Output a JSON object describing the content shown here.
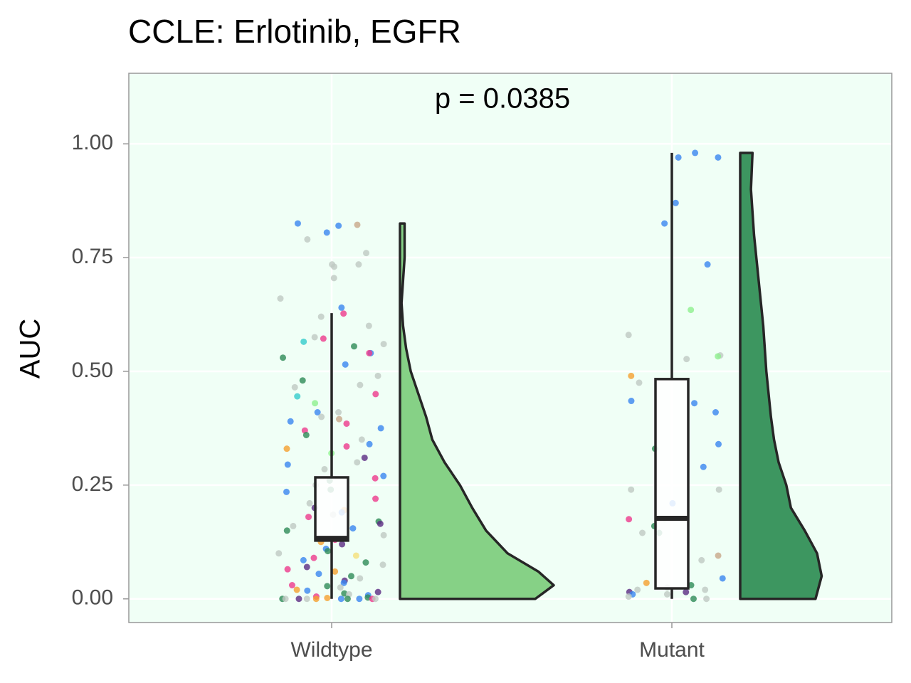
{
  "chart_data": {
    "type": "raincloud",
    "title": "CCLE: Erlotinib, EGFR",
    "y_label": "AUC",
    "annotation": "p = 0.0385",
    "ylim": [
      -0.052,
      1.155
    ],
    "yticks": [
      {
        "value": 0,
        "label": "0.00"
      },
      {
        "value": 0.25,
        "label": "0.25"
      },
      {
        "value": 0.5,
        "label": "0.50"
      },
      {
        "value": 0.75,
        "label": "0.75"
      },
      {
        "value": 1,
        "label": "1.00"
      }
    ],
    "grid": true,
    "panel_color": "#f0fff6",
    "groups": [
      {
        "name": "Wildtype",
        "fill": "#86d186",
        "box": {
          "whisker_low": 0,
          "q1": 0.128,
          "median": 0.133,
          "q3": 0.267,
          "whisker_high": 0.628
        },
        "density": {
          "y": [
            0,
            0.03,
            0.06,
            0.1,
            0.15,
            0.2,
            0.25,
            0.3,
            0.35,
            0.4,
            0.45,
            0.5,
            0.55,
            0.6,
            0.65,
            0.7,
            0.75,
            0.8,
            0.825
          ],
          "width": [
            0.88,
            1.0,
            0.9,
            0.7,
            0.56,
            0.47,
            0.39,
            0.29,
            0.21,
            0.17,
            0.12,
            0.07,
            0.04,
            0.02,
            0.01,
            0.02,
            0.03,
            0.03,
            0.03
          ]
        },
        "points": {
          "values": [
            0.825,
            0.822,
            0.82,
            0.805,
            0.79,
            0.76,
            0.735,
            0.735,
            0.73,
            0.705,
            0.66,
            0.64,
            0.627,
            0.62,
            0.6,
            0.575,
            0.572,
            0.565,
            0.56,
            0.555,
            0.54,
            0.54,
            0.53,
            0.515,
            0.49,
            0.48,
            0.47,
            0.465,
            0.45,
            0.445,
            0.43,
            0.41,
            0.41,
            0.4,
            0.395,
            0.39,
            0.385,
            0.375,
            0.37,
            0.36,
            0.35,
            0.34,
            0.335,
            0.33,
            0.32,
            0.31,
            0.3,
            0.295,
            0.285,
            0.27,
            0.265,
            0.26,
            0.25,
            0.24,
            0.235,
            0.22,
            0.21,
            0.2,
            0.195,
            0.19,
            0.185,
            0.18,
            0.17,
            0.165,
            0.16,
            0.155,
            0.15,
            0.14,
            0.13,
            0.125,
            0.12,
            0.11,
            0.105,
            0.1,
            0.095,
            0.09,
            0.085,
            0.08,
            0.075,
            0.07,
            0.065,
            0.06,
            0.055,
            0.05,
            0.045,
            0.04,
            0.035,
            0.03,
            0.028,
            0.025,
            0.02,
            0.018,
            0.015,
            0.012,
            0.01,
            0.008,
            0.005,
            0.003,
            0.002,
            0,
            0,
            0,
            0,
            0,
            0,
            0,
            0,
            0,
            0
          ],
          "colors": [
            "#3a86f0",
            "#c8a88a",
            "#3a86f0",
            "#3a86f0",
            "#bfc9c3",
            "#bfc9c3",
            "#bfc9c3",
            "#bfc9c3",
            "#bfc9c3",
            "#bfc9c3",
            "#bfc9c3",
            "#3a86f0",
            "#ee3a8c",
            "#bfc9c3",
            "#bfc9c3",
            "#bfc9c3",
            "#ee3a8c",
            "#33cccc",
            "#bfc9c3",
            "#2e8b57",
            "#3a86f0",
            "#ee3a8c",
            "#2e8b57",
            "#3a86f0",
            "#bfc9c3",
            "#2e8b57",
            "#bfc9c3",
            "#bfc9c3",
            "#ee3a8c",
            "#33cccc",
            "#8ef08e",
            "#bfc9c3",
            "#3a86f0",
            "#bfc9c3",
            "#c8a88a",
            "#3a86f0",
            "#ee3a8c",
            "#3a86f0",
            "#ee3a8c",
            "#2e8b57",
            "#bfc9c3",
            "#3a86f0",
            "#ee3a8c",
            "#f5a030",
            "#8ef08e",
            "#5b2c83",
            "#bfc9c3",
            "#3a86f0",
            "#bfc9c3",
            "#3a86f0",
            "#ee3a8c",
            "#2e8b57",
            "#bfc9c3",
            "#2e8b57",
            "#3a86f0",
            "#ee3a8c",
            "#bfc9c3",
            "#5b2c83",
            "#f5a030",
            "#3a86f0",
            "#bfc9c3",
            "#ee3a8c",
            "#2e8b57",
            "#5b2c83",
            "#bfc9c3",
            "#3a86f0",
            "#2e8b57",
            "#bfc9c3",
            "#ee3a8c",
            "#f5a030",
            "#5b2c83",
            "#3a86f0",
            "#2e8b57",
            "#bfc9c3",
            "#f5e07a",
            "#ee3a8c",
            "#3a86f0",
            "#2e8b57",
            "#bfc9c3",
            "#5b2c83",
            "#ee3a8c",
            "#f5a030",
            "#3a86f0",
            "#2e8b57",
            "#bfc9c3",
            "#5b2c83",
            "#3a86f0",
            "#ee3a8c",
            "#2e8b57",
            "#bfc9c3",
            "#f5a030",
            "#3a86f0",
            "#5b2c83",
            "#2e8b57",
            "#bfc9c3",
            "#3a86f0",
            "#ee3a8c",
            "#2e8b57",
            "#f5a030",
            "#bfc9c3",
            "#3a86f0",
            "#2e8b57",
            "#f5a030",
            "#ee3a8c",
            "#5b2c83",
            "#bfc9c3",
            "#2e8b57",
            "#3a86f0",
            "#bfc9c3"
          ]
        }
      },
      {
        "name": "Mutant",
        "fill": "#3d9660",
        "box": {
          "whisker_low": 0,
          "q1": 0.023,
          "median": 0.177,
          "q3": 0.483,
          "whisker_high": 0.98
        },
        "density": {
          "y": [
            0,
            0.05,
            0.1,
            0.15,
            0.2,
            0.25,
            0.3,
            0.35,
            0.4,
            0.5,
            0.6,
            0.7,
            0.8,
            0.9,
            0.98
          ],
          "width": [
            0.49,
            0.53,
            0.5,
            0.42,
            0.33,
            0.3,
            0.25,
            0.22,
            0.2,
            0.17,
            0.15,
            0.12,
            0.09,
            0.07,
            0.08
          ]
        },
        "points": {
          "values": [
            0.97,
            0.97,
            0.98,
            0.87,
            0.825,
            0.735,
            0.635,
            0.58,
            0.535,
            0.533,
            0.527,
            0.49,
            0.475,
            0.435,
            0.43,
            0.41,
            0.34,
            0.33,
            0.29,
            0.24,
            0.24,
            0.21,
            0.175,
            0.175,
            0.16,
            0.145,
            0.145,
            0.095,
            0.085,
            0.045,
            0.035,
            0.03,
            0.025,
            0.02,
            0.02,
            0.015,
            0.015,
            0.01,
            0.01,
            0.005,
            0,
            0
          ],
          "colors": [
            "#3a86f0",
            "#3a86f0",
            "#3a86f0",
            "#3a86f0",
            "#3a86f0",
            "#3a86f0",
            "#8ef08e",
            "#bfc9c3",
            "#bfc9c3",
            "#8ef08e",
            "#bfc9c3",
            "#f5a030",
            "#bfc9c3",
            "#3a86f0",
            "#3a86f0",
            "#3a86f0",
            "#3a86f0",
            "#2e8b57",
            "#3a86f0",
            "#bfc9c3",
            "#bfc9c3",
            "#3a86f0",
            "#8ef08e",
            "#ee3a8c",
            "#2e8b57",
            "#2e8b57",
            "#bfc9c3",
            "#c8a88a",
            "#bfc9c3",
            "#3a86f0",
            "#f5a030",
            "#2e8b57",
            "#bfc9c3",
            "#bfc9c3",
            "#bfc9c3",
            "#5b2c83",
            "#5b2c83",
            "#3a86f0",
            "#bfc9c3",
            "#bfc9c3",
            "#2e8b57",
            "#bfc9c3"
          ]
        }
      }
    ]
  }
}
